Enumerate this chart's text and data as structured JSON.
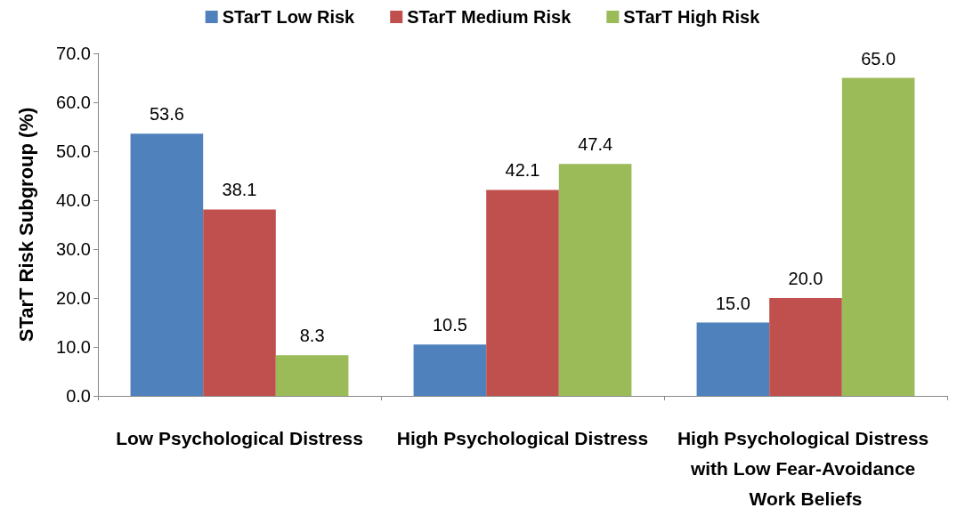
{
  "chart_data": {
    "type": "bar",
    "ylabel": "STarT Risk Subgroup (%)",
    "categories": [
      "Low Psychological Distress",
      "High Psychological Distress",
      "High Psychological Distress with Low Fear-Avoidance Work Beliefs"
    ],
    "series": [
      {
        "name": "STarT Low Risk",
        "color": "#4f81bd",
        "values": [
          53.6,
          10.5,
          15.0
        ],
        "value_labels": [
          "53.6",
          "10.5",
          "15.0"
        ]
      },
      {
        "name": "STarT Medium Risk",
        "color": "#c0504d",
        "values": [
          38.1,
          42.1,
          20.0
        ],
        "value_labels": [
          "38.1",
          "42.1",
          "20.0"
        ]
      },
      {
        "name": "STarT High Risk",
        "color": "#9bbb59",
        "values": [
          8.3,
          47.4,
          65.0
        ],
        "value_labels": [
          "8.3",
          "47.4",
          "65.0"
        ]
      }
    ],
    "ylim": [
      0,
      70
    ],
    "yticks": [
      {
        "value": 0,
        "label": "0.0"
      },
      {
        "value": 10,
        "label": "10.0"
      },
      {
        "value": 20,
        "label": "20.0"
      },
      {
        "value": 30,
        "label": "30.0"
      },
      {
        "value": 40,
        "label": "40.0"
      },
      {
        "value": 50,
        "label": "50.0"
      },
      {
        "value": 60,
        "label": "60.0"
      },
      {
        "value": 70,
        "label": "70.0"
      }
    ],
    "grid": false,
    "legend": "top"
  }
}
